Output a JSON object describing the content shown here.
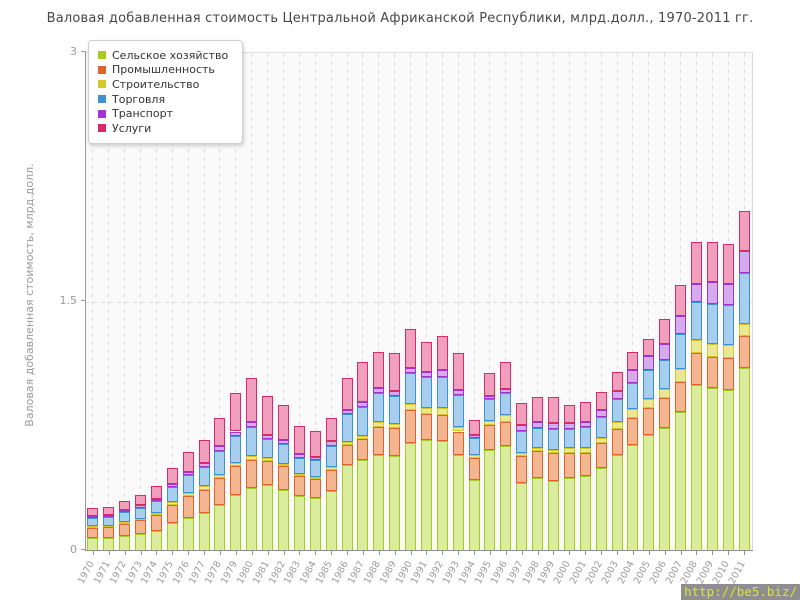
{
  "title": "Валовая добавленная стоимость Центральной Африканской Республики, млрд.долл., 1970-2011 гг.",
  "watermark": "http://be5.biz/",
  "y_axis": {
    "title": "Валовая добавленная стоимость, млрд.долл.",
    "ticks": [
      {
        "label": "0",
        "value": 0
      },
      {
        "label": "1.5",
        "value": 1.5
      },
      {
        "label": "3",
        "value": 3
      }
    ]
  },
  "chart_data": {
    "type": "bar",
    "stacked": true,
    "title": "Валовая добавленная стоимость Центральной Африканской Республики, млрд.долл., 1970-2011 гг.",
    "xlabel": "",
    "ylabel": "Валовая добавленная стоимость, млрд.долл.",
    "ylim": [
      0,
      3
    ],
    "grid": true,
    "legend_position": "top-left",
    "units": "млрд.долл.",
    "categories": [
      "1970",
      "1971",
      "1972",
      "1973",
      "1974",
      "1975",
      "1976",
      "1977",
      "1978",
      "1979",
      "1980",
      "1981",
      "1982",
      "1983",
      "1984",
      "1985",
      "1986",
      "1987",
      "1988",
      "1989",
      "1990",
      "1991",
      "1992",
      "1993",
      "1994",
      "1995",
      "1996",
      "1997",
      "1998",
      "1999",
      "2000",
      "2001",
      "2002",
      "2003",
      "2004",
      "2005",
      "2006",
      "2007",
      "2008",
      "2009",
      "2010",
      "2011"
    ],
    "series": [
      {
        "name": "Сельское хозяйство",
        "color": "#a9c923",
        "fill": "#dcec9e",
        "values": [
          0.08,
          0.08,
          0.09,
          0.1,
          0.12,
          0.17,
          0.2,
          0.23,
          0.28,
          0.34,
          0.38,
          0.4,
          0.37,
          0.33,
          0.32,
          0.36,
          0.52,
          0.55,
          0.58,
          0.57,
          0.65,
          0.67,
          0.66,
          0.58,
          0.43,
          0.61,
          0.63,
          0.41,
          0.44,
          0.42,
          0.44,
          0.45,
          0.5,
          0.58,
          0.64,
          0.7,
          0.74,
          0.84,
          1.0,
          0.98,
          0.97,
          1.1
        ]
      },
      {
        "name": "Промышленность",
        "color": "#e0622c",
        "fill": "#f4b690",
        "values": [
          0.06,
          0.065,
          0.075,
          0.085,
          0.095,
          0.11,
          0.13,
          0.14,
          0.16,
          0.17,
          0.17,
          0.145,
          0.14,
          0.12,
          0.115,
          0.13,
          0.12,
          0.125,
          0.17,
          0.17,
          0.2,
          0.155,
          0.16,
          0.14,
          0.13,
          0.15,
          0.15,
          0.16,
          0.16,
          0.17,
          0.15,
          0.14,
          0.15,
          0.155,
          0.16,
          0.16,
          0.18,
          0.18,
          0.19,
          0.19,
          0.19,
          0.195
        ]
      },
      {
        "name": "Строительство",
        "color": "#d2c829",
        "fill": "#ece794",
        "values": [
          0.008,
          0.008,
          0.01,
          0.01,
          0.012,
          0.015,
          0.018,
          0.02,
          0.02,
          0.02,
          0.02,
          0.015,
          0.015,
          0.012,
          0.012,
          0.015,
          0.015,
          0.02,
          0.025,
          0.025,
          0.035,
          0.035,
          0.04,
          0.03,
          0.02,
          0.025,
          0.04,
          0.02,
          0.02,
          0.02,
          0.03,
          0.03,
          0.03,
          0.04,
          0.055,
          0.055,
          0.055,
          0.075,
          0.08,
          0.08,
          0.08,
          0.075
        ]
      },
      {
        "name": "Торговля",
        "color": "#3d93d1",
        "fill": "#a7cfed",
        "values": [
          0.05,
          0.052,
          0.058,
          0.065,
          0.073,
          0.088,
          0.108,
          0.118,
          0.14,
          0.16,
          0.18,
          0.115,
          0.12,
          0.1,
          0.1,
          0.13,
          0.17,
          0.17,
          0.175,
          0.17,
          0.19,
          0.19,
          0.19,
          0.19,
          0.1,
          0.13,
          0.13,
          0.13,
          0.12,
          0.125,
          0.115,
          0.13,
          0.13,
          0.14,
          0.16,
          0.175,
          0.175,
          0.21,
          0.23,
          0.24,
          0.24,
          0.305
        ]
      },
      {
        "name": "Транспорт",
        "color": "#a235d2",
        "fill": "#d5abee",
        "values": [
          0.01,
          0.012,
          0.012,
          0.015,
          0.015,
          0.02,
          0.022,
          0.025,
          0.03,
          0.03,
          0.03,
          0.025,
          0.025,
          0.022,
          0.02,
          0.025,
          0.025,
          0.03,
          0.03,
          0.03,
          0.03,
          0.03,
          0.04,
          0.03,
          0.02,
          0.02,
          0.025,
          0.04,
          0.04,
          0.035,
          0.035,
          0.03,
          0.04,
          0.05,
          0.075,
          0.085,
          0.1,
          0.11,
          0.11,
          0.13,
          0.13,
          0.135
        ]
      },
      {
        "name": "Услуги",
        "color": "#d82a69",
        "fill": "#f0a0bd",
        "values": [
          0.05,
          0.05,
          0.055,
          0.062,
          0.075,
          0.095,
          0.12,
          0.135,
          0.17,
          0.23,
          0.26,
          0.235,
          0.21,
          0.17,
          0.155,
          0.14,
          0.19,
          0.245,
          0.22,
          0.225,
          0.235,
          0.18,
          0.205,
          0.22,
          0.09,
          0.14,
          0.165,
          0.13,
          0.15,
          0.16,
          0.11,
          0.12,
          0.11,
          0.115,
          0.11,
          0.105,
          0.15,
          0.185,
          0.25,
          0.24,
          0.24,
          0.24
        ]
      }
    ]
  }
}
